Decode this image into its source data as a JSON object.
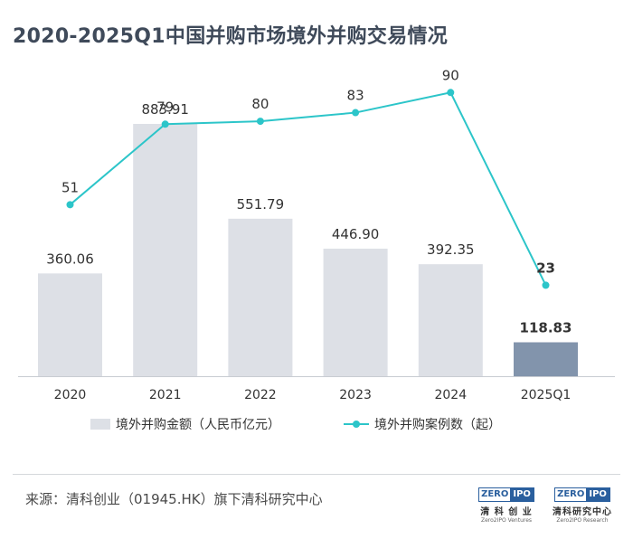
{
  "header": {
    "title": "2020-2025Q1中国并购市场境外并购交易情况"
  },
  "chart_data": {
    "type": "bar",
    "categories": [
      "2020",
      "2021",
      "2022",
      "2023",
      "2024",
      "2025Q1"
    ],
    "series": [
      {
        "name": "境外并购金额（人民币亿元）",
        "kind": "bar",
        "values": [
          360.06,
          883.91,
          551.79,
          446.9,
          392.35,
          118.83
        ],
        "labels": [
          "360.06",
          "883.91",
          "551.79",
          "446.90",
          "392.35",
          "118.83"
        ]
      },
      {
        "name": "境外并购案例数（起）",
        "kind": "line",
        "values": [
          51,
          79,
          80,
          83,
          90,
          23
        ],
        "labels": [
          "51",
          "79",
          "80",
          "83",
          "90",
          "23"
        ]
      }
    ],
    "highlight_index": 5,
    "colors": {
      "bar": "#dde0e6",
      "bar_highlight": "#8294ac",
      "line": "#2cc5c9",
      "label": "#333333",
      "axis": "#c8ccd2"
    }
  },
  "footer": {
    "source": "来源：清科创业（01945.HK）旗下清科研究中心",
    "logo1": {
      "mark_left": "ZERO",
      "mark_right": "IPO",
      "cn": "清 科 创 业",
      "en": "Zero2IPO Ventures"
    },
    "logo2": {
      "mark_left": "ZERO",
      "mark_right": "IPO",
      "cn": "清科研究中心",
      "en": "Zero2IPO Research"
    }
  }
}
